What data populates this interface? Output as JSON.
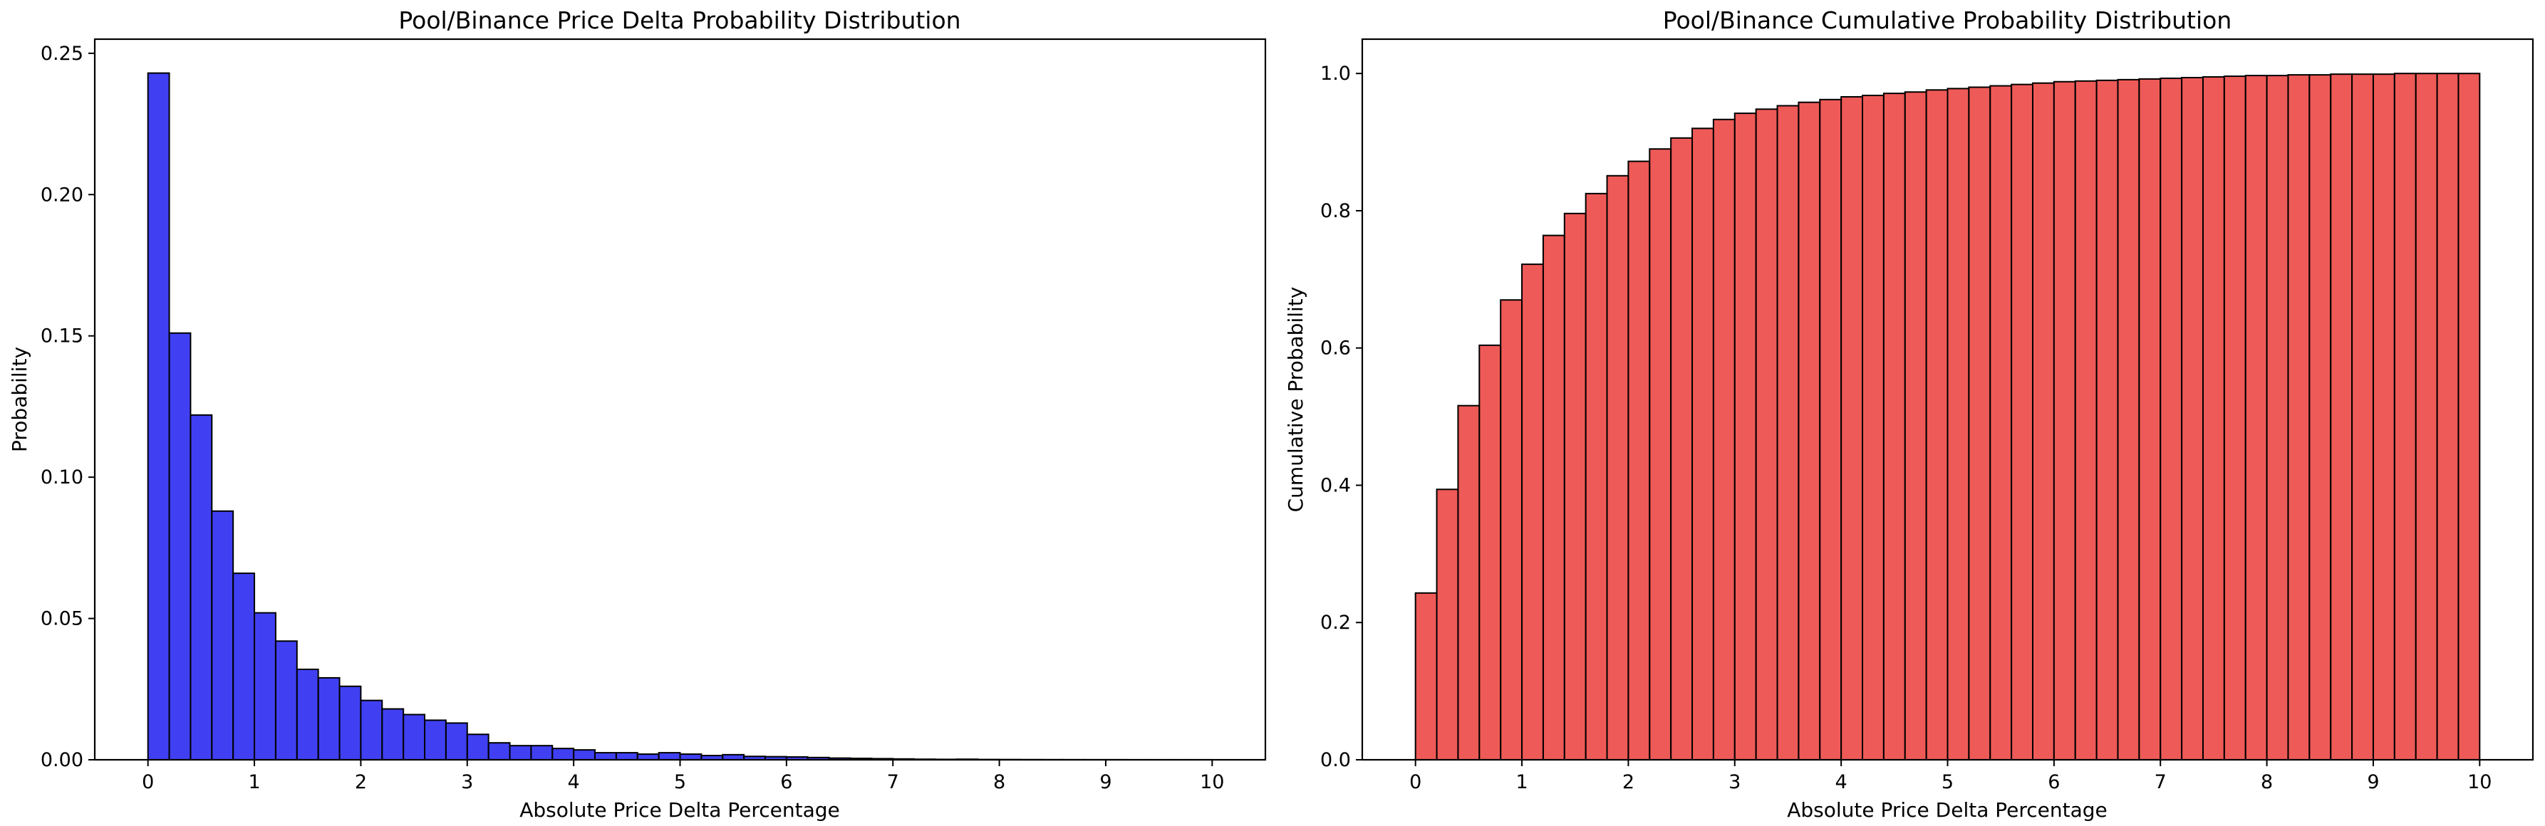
{
  "chart_data": [
    {
      "type": "bar",
      "title": "Pool/Binance Price Delta Probability Distribution",
      "xlabel": "Absolute Price Delta Percentage",
      "ylabel": "Probability",
      "xlim": [
        -0.5,
        10.5
      ],
      "ylim": [
        0,
        0.255
      ],
      "xticks": [
        "0",
        "1",
        "2",
        "3",
        "4",
        "5",
        "6",
        "7",
        "8",
        "9",
        "10"
      ],
      "yticks": [
        "0.00",
        "0.05",
        "0.10",
        "0.15",
        "0.20",
        "0.25"
      ],
      "bin_width": 0.2,
      "bin_start": 0,
      "values": [
        0.243,
        0.151,
        0.122,
        0.088,
        0.066,
        0.052,
        0.042,
        0.032,
        0.029,
        0.026,
        0.021,
        0.018,
        0.016,
        0.014,
        0.013,
        0.009,
        0.006,
        0.005,
        0.005,
        0.004,
        0.0035,
        0.0025,
        0.0025,
        0.002,
        0.0025,
        0.002,
        0.0015,
        0.0018,
        0.0012,
        0.0011,
        0.001,
        0.0008,
        0.0006,
        0.0005,
        0.0004,
        0.0003,
        0.0002,
        0.00015,
        0.0002,
        0.0001,
        8e-05,
        5e-05,
        4e-05,
        3e-05,
        2e-05,
        2e-05,
        1e-05,
        1e-05,
        1e-05,
        1e-05
      ],
      "color": "#0000ee",
      "grid": false
    },
    {
      "type": "bar",
      "title": "Pool/Binance Cumulative Probability Distribution",
      "xlabel": "Absolute Price Delta Percentage",
      "ylabel": "Cumulative Probability",
      "xlim": [
        -0.5,
        10.5
      ],
      "ylim": [
        0,
        1.05
      ],
      "xticks": [
        "0",
        "1",
        "2",
        "3",
        "4",
        "5",
        "6",
        "7",
        "8",
        "9",
        "10"
      ],
      "yticks": [
        "0.0",
        "0.2",
        "0.4",
        "0.6",
        "0.8",
        "1.0"
      ],
      "bin_width": 0.2,
      "bin_start": 0,
      "values": [
        0.243,
        0.394,
        0.516,
        0.604,
        0.67,
        0.722,
        0.764,
        0.796,
        0.825,
        0.851,
        0.872,
        0.89,
        0.906,
        0.92,
        0.933,
        0.942,
        0.948,
        0.953,
        0.958,
        0.962,
        0.966,
        0.968,
        0.971,
        0.973,
        0.976,
        0.978,
        0.98,
        0.982,
        0.984,
        0.986,
        0.988,
        0.989,
        0.99,
        0.991,
        0.992,
        0.993,
        0.994,
        0.995,
        0.996,
        0.997,
        0.997,
        0.998,
        0.998,
        0.999,
        0.999,
        0.999,
        1.0,
        1.0,
        1.0,
        1.0
      ],
      "color": "#e8231f",
      "grid": false
    }
  ]
}
